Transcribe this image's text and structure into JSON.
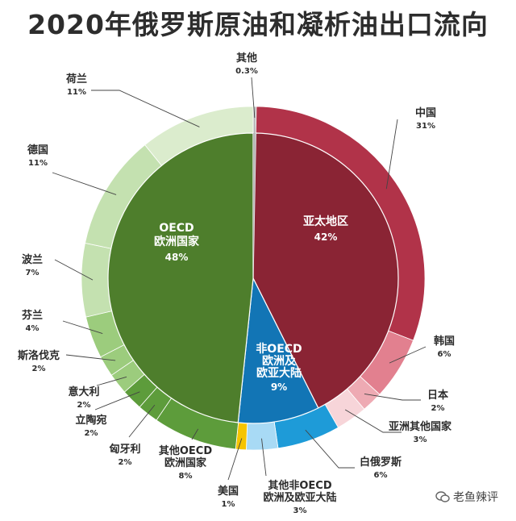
{
  "title": "2020年俄罗斯原油和凝析油出口流向",
  "watermark": "老鱼辣评",
  "colors": {
    "asia_inner": "#8a2434",
    "china": "#b13349",
    "korea": "#e2808f",
    "japan": "#eeaab3",
    "asia_other": "#f7d5d9",
    "nonoecd_inner": "#1275b5",
    "belarus": "#1e9bd8",
    "nonoecd_other": "#a8daf5",
    "usa": "#f5c400",
    "oecd_inner": "#4e7e2c",
    "oecd_outer_dark": "#5d9c3b",
    "oecd_outer_mid": "#9ccc7d",
    "oecd_outer_light": "#c4e1b0",
    "oecd_outer_pale": "#dbeccd",
    "other": "#b9b9b9"
  },
  "chart_data": {
    "type": "pie",
    "title": "2020年俄罗斯原油和凝析油出口流向",
    "unit": "%",
    "inner_ring": [
      {
        "name": "亚太地区",
        "value": 42
      },
      {
        "name": "非OECD欧洲及欧亚大陆",
        "value": 9
      },
      {
        "name": "OECD欧洲国家",
        "value": 48
      }
    ],
    "outer_ring": [
      {
        "name": "其他",
        "value": 0.3,
        "label": "0.3%"
      },
      {
        "name": "中国",
        "value": 31,
        "label": "31%"
      },
      {
        "name": "韩国",
        "value": 6,
        "label": "6%"
      },
      {
        "name": "日本",
        "value": 2,
        "label": "2%"
      },
      {
        "name": "亚洲其他国家",
        "value": 3,
        "label": "3%"
      },
      {
        "name": "白俄罗斯",
        "value": 6,
        "label": "6%"
      },
      {
        "name": "其他非OECD欧洲及欧亚大陆",
        "value": 3,
        "label": "3%"
      },
      {
        "name": "美国",
        "value": 1,
        "label": "1%"
      },
      {
        "name": "其他OECD欧洲国家",
        "value": 8,
        "label": "8%"
      },
      {
        "name": "匈牙利",
        "value": 2,
        "label": "2%"
      },
      {
        "name": "立陶宛",
        "value": 2,
        "label": "2%"
      },
      {
        "name": "意大利",
        "value": 2,
        "label": "2%"
      },
      {
        "name": "斯洛伐克",
        "value": 2,
        "label": "2%"
      },
      {
        "name": "芬兰",
        "value": 4,
        "label": "4%"
      },
      {
        "name": "波兰",
        "value": 7,
        "label": "7%"
      },
      {
        "name": "德国",
        "value": 11,
        "label": "11%"
      },
      {
        "name": "荷兰",
        "value": 11,
        "label": "11%"
      }
    ],
    "inner_labels": {
      "asia": {
        "lines": [
          "亚太地区"
        ],
        "pct": "42%"
      },
      "nonoecd": {
        "lines": [
          "非OECD",
          "欧洲及",
          "欧亚大陆"
        ],
        "pct": "9%"
      },
      "oecd": {
        "lines": [
          "OECD",
          "欧洲国家"
        ],
        "pct": "48%"
      }
    },
    "outer_labels": [
      {
        "name_lines": [
          "其他"
        ],
        "pct": "0.3%"
      },
      {
        "name_lines": [
          "中国"
        ],
        "pct": "31%"
      },
      {
        "name_lines": [
          "韩国"
        ],
        "pct": "6%"
      },
      {
        "name_lines": [
          "日本"
        ],
        "pct": "2%"
      },
      {
        "name_lines": [
          "亚洲其他国家"
        ],
        "pct": "3%"
      },
      {
        "name_lines": [
          "白俄罗斯"
        ],
        "pct": "6%"
      },
      {
        "name_lines": [
          "其他非OECD",
          "欧洲及欧亚大陆"
        ],
        "pct": "3%"
      },
      {
        "name_lines": [
          "美国"
        ],
        "pct": "1%"
      },
      {
        "name_lines": [
          "其他OECD",
          "欧洲国家"
        ],
        "pct": "8%"
      },
      {
        "name_lines": [
          "匈牙利"
        ],
        "pct": "2%"
      },
      {
        "name_lines": [
          "立陶宛"
        ],
        "pct": "2%"
      },
      {
        "name_lines": [
          "意大利"
        ],
        "pct": "2%"
      },
      {
        "name_lines": [
          "斯洛伐克"
        ],
        "pct": "2%"
      },
      {
        "name_lines": [
          "芬兰"
        ],
        "pct": "4%"
      },
      {
        "name_lines": [
          "波兰"
        ],
        "pct": "7%"
      },
      {
        "name_lines": [
          "德国"
        ],
        "pct": "11%"
      },
      {
        "name_lines": [
          "荷兰"
        ],
        "pct": "11%"
      }
    ]
  }
}
